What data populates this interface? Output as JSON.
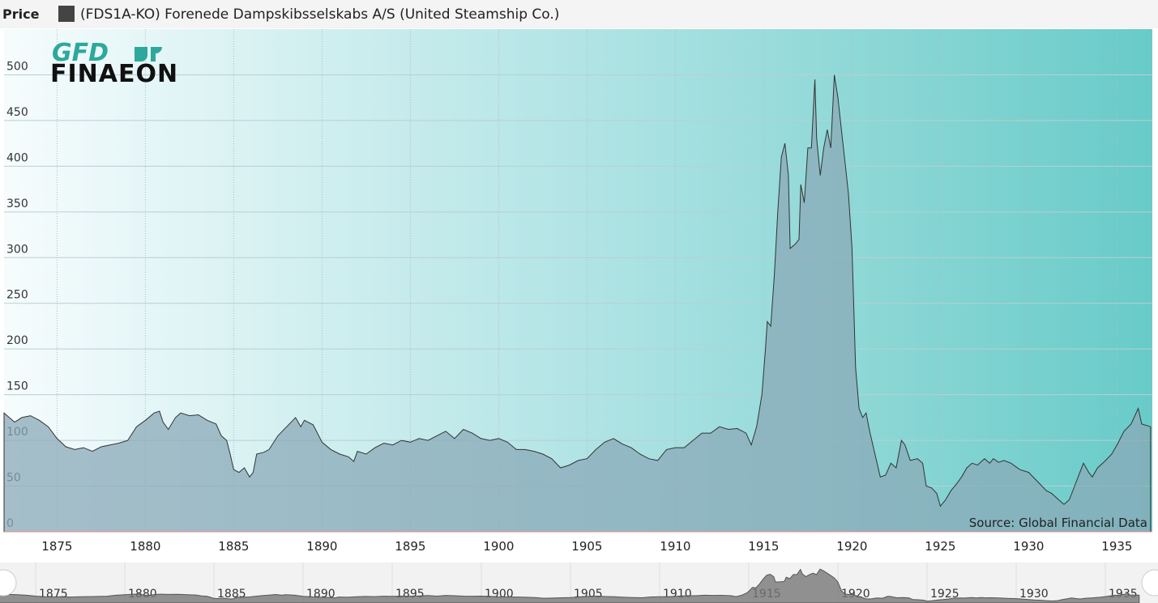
{
  "chart_data": {
    "type": "area",
    "title": "Price",
    "source": "Source: Global Financial Data",
    "logo": {
      "top": "GFD",
      "bottom": "FINAEON"
    },
    "x": [
      1872.0,
      1872.3,
      1872.6,
      1873.0,
      1873.5,
      1874.0,
      1874.5,
      1875.0,
      1875.5,
      1876.0,
      1876.5,
      1877.0,
      1877.5,
      1878.0,
      1878.5,
      1879.0,
      1879.5,
      1880.0,
      1880.5,
      1880.8,
      1881.0,
      1881.3,
      1881.7,
      1882.0,
      1882.5,
      1883.0,
      1883.5,
      1884.0,
      1884.3,
      1884.6,
      1884.8,
      1885.0,
      1885.3,
      1885.6,
      1885.9,
      1886.1,
      1886.3,
      1886.7,
      1887.0,
      1887.5,
      1888.0,
      1888.5,
      1888.8,
      1889.0,
      1889.5,
      1890.0,
      1890.5,
      1891.0,
      1891.5,
      1891.8,
      1892.0,
      1892.5,
      1893.0,
      1893.5,
      1894.0,
      1894.5,
      1895.0,
      1895.5,
      1896.0,
      1896.5,
      1897.0,
      1897.5,
      1898.0,
      1898.5,
      1899.0,
      1899.5,
      1900.0,
      1900.5,
      1901.0,
      1901.5,
      1902.0,
      1902.5,
      1903.0,
      1903.5,
      1904.0,
      1904.5,
      1905.0,
      1905.5,
      1906.0,
      1906.5,
      1907.0,
      1907.5,
      1908.0,
      1908.5,
      1909.0,
      1909.5,
      1910.0,
      1910.5,
      1911.0,
      1911.5,
      1912.0,
      1912.5,
      1913.0,
      1913.5,
      1914.0,
      1914.3,
      1914.6,
      1914.9,
      1915.1,
      1915.2,
      1915.4,
      1915.6,
      1915.8,
      1916.0,
      1916.2,
      1916.4,
      1916.5,
      1916.8,
      1917.0,
      1917.1,
      1917.3,
      1917.5,
      1917.7,
      1917.9,
      1918.0,
      1918.2,
      1918.4,
      1918.6,
      1918.8,
      1918.9,
      1919.0,
      1919.2,
      1919.4,
      1919.6,
      1919.8,
      1920.0,
      1920.2,
      1920.4,
      1920.6,
      1920.8,
      1921.0,
      1921.3,
      1921.6,
      1921.9,
      1922.2,
      1922.5,
      1922.8,
      1923.0,
      1923.3,
      1923.7,
      1924.0,
      1924.2,
      1924.5,
      1924.8,
      1925.0,
      1925.3,
      1925.6,
      1925.9,
      1926.2,
      1926.5,
      1926.8,
      1927.1,
      1927.5,
      1927.8,
      1928.0,
      1928.3,
      1928.6,
      1929.0,
      1929.5,
      1930.0,
      1930.5,
      1931.0,
      1931.3,
      1931.7,
      1932.0,
      1932.3,
      1932.6,
      1932.9,
      1933.1,
      1933.4,
      1933.6,
      1933.9,
      1934.3,
      1934.7,
      1935.0,
      1935.4,
      1935.8,
      1936.2,
      1936.4,
      1936.9
    ],
    "series": [
      {
        "name": "(FDS1A-KO) Forenede Dampskibsselskabs  A/S (United Steamship Co.)",
        "color": "#8aa9b8",
        "values": [
          130,
          125,
          120,
          125,
          127,
          122,
          115,
          102,
          93,
          90,
          92,
          88,
          93,
          95,
          97,
          100,
          115,
          122,
          130,
          132,
          120,
          112,
          125,
          130,
          127,
          128,
          122,
          118,
          105,
          100,
          85,
          68,
          65,
          70,
          60,
          65,
          85,
          87,
          90,
          105,
          115,
          125,
          115,
          122,
          117,
          98,
          90,
          85,
          82,
          77,
          88,
          85,
          92,
          97,
          95,
          100,
          98,
          102,
          100,
          105,
          110,
          102,
          112,
          108,
          102,
          100,
          102,
          98,
          90,
          90,
          88,
          85,
          80,
          70,
          73,
          78,
          80,
          90,
          98,
          102,
          96,
          92,
          85,
          80,
          78,
          90,
          92,
          92,
          100,
          108,
          108,
          115,
          112,
          113,
          108,
          95,
          115,
          150,
          200,
          230,
          225,
          280,
          350,
          410,
          425,
          390,
          310,
          315,
          320,
          380,
          360,
          420,
          420,
          495,
          430,
          390,
          420,
          440,
          420,
          460,
          500,
          475,
          440,
          405,
          370,
          310,
          180,
          135,
          125,
          130,
          110,
          85,
          60,
          62,
          75,
          70,
          100,
          95,
          78,
          80,
          75,
          50,
          48,
          42,
          28,
          35,
          45,
          52,
          60,
          70,
          75,
          73,
          80,
          75,
          80,
          76,
          78,
          75,
          68,
          65,
          55,
          45,
          42,
          35,
          30,
          35,
          50,
          65,
          75,
          65,
          60,
          70,
          77,
          85,
          95,
          110,
          118,
          135,
          118,
          115
        ]
      }
    ],
    "xlim": [
      1872,
      1937
    ],
    "xticks": [
      1875,
      1880,
      1885,
      1890,
      1895,
      1900,
      1905,
      1910,
      1915,
      1920,
      1925,
      1930,
      1935
    ],
    "ylim": [
      0,
      550
    ],
    "yticks": [
      0,
      50,
      100,
      150,
      200,
      250,
      300,
      350,
      400,
      450,
      500
    ],
    "grid": true
  }
}
